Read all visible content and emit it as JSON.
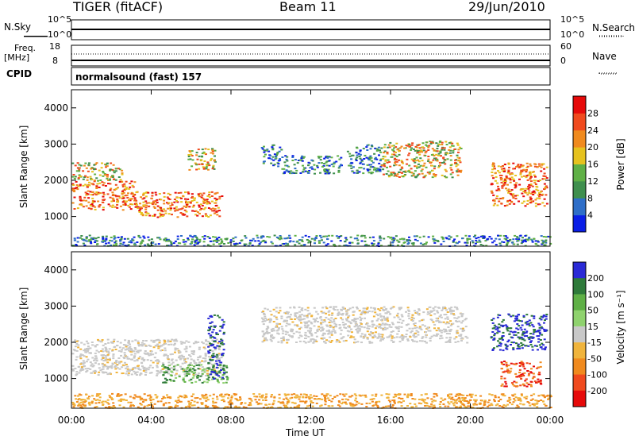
{
  "header": {
    "radar": "TIGER (fitACF)",
    "beam": "Beam 11",
    "date": "29/Jun/2010"
  },
  "noise_panel": {
    "left_label": "N.Sky",
    "left_ticks": [
      "10^5",
      "10^0"
    ],
    "right_label": "N.Search",
    "right_ticks": [
      "10^5",
      "10^0"
    ]
  },
  "freq_panel": {
    "left_label_1": "Freq.",
    "left_label_2": "[MHz]",
    "left_ticks": [
      "18",
      "8"
    ],
    "right_label": "Nave",
    "right_ticks": [
      "60",
      "0"
    ]
  },
  "cpid_panel": {
    "label": "CPID",
    "text": "normalsound (fast) 157"
  },
  "chart_data": [
    {
      "type": "heatmap",
      "name": "power",
      "ylabel": "Slant Range [km]",
      "xlabel": "Time UT",
      "x_ticks": [
        "00:00",
        "04:00",
        "08:00",
        "12:00",
        "16:00",
        "20:00",
        "00:00"
      ],
      "xlim_hours": [
        0,
        24
      ],
      "y_ticks": [
        1000,
        2000,
        3000,
        4000
      ],
      "ylim": [
        180,
        4500
      ],
      "colorbar": {
        "label": "Power [dB]",
        "ticks": [
          4,
          8,
          12,
          16,
          20,
          24,
          28
        ],
        "range": [
          0,
          32
        ],
        "colors": [
          "#0a1ee6",
          "#2e6ec8",
          "#3f8f4e",
          "#5fb046",
          "#e6c21e",
          "#f08a1e",
          "#f04a1e",
          "#e60a0a"
        ]
      },
      "regions": [
        {
          "t": [
            0.0,
            3.2
          ],
          "r": [
            1200,
            2000
          ],
          "level": "high"
        },
        {
          "t": [
            3.2,
            7.5
          ],
          "r": [
            1000,
            1700
          ],
          "level": "high"
        },
        {
          "t": [
            0.0,
            2.5
          ],
          "r": [
            2000,
            2500
          ],
          "level": "mid"
        },
        {
          "t": [
            5.8,
            7.2
          ],
          "r": [
            2300,
            2900
          ],
          "level": "mid"
        },
        {
          "t": [
            9.5,
            10.5
          ],
          "r": [
            2400,
            3000
          ],
          "level": "low"
        },
        {
          "t": [
            10.5,
            13.5
          ],
          "r": [
            2200,
            2700
          ],
          "level": "low"
        },
        {
          "t": [
            13.8,
            15.5
          ],
          "r": [
            2200,
            3000
          ],
          "level": "low"
        },
        {
          "t": [
            15.5,
            19.5
          ],
          "r": [
            2100,
            3100
          ],
          "level": "mid"
        },
        {
          "t": [
            21.0,
            23.8
          ],
          "r": [
            1300,
            2500
          ],
          "level": "high"
        },
        {
          "t": [
            0.0,
            24.0
          ],
          "r": [
            200,
            500
          ],
          "level": "low"
        }
      ]
    },
    {
      "type": "heatmap",
      "name": "velocity",
      "ylabel": "Slant Range [km]",
      "xlabel": "Time UT",
      "x_ticks": [
        "00:00",
        "04:00",
        "08:00",
        "12:00",
        "16:00",
        "20:00",
        "00:00"
      ],
      "xlim_hours": [
        0,
        24
      ],
      "y_ticks": [
        1000,
        2000,
        3000,
        4000
      ],
      "ylim": [
        180,
        4500
      ],
      "colorbar": {
        "label": "Velocity [m s⁻¹]",
        "ticks": [
          200,
          100,
          50,
          15,
          -15,
          -50,
          -100,
          -200
        ],
        "colors": [
          "#2a2ad6",
          "#2e7a3a",
          "#5fb046",
          "#8fd26e",
          "#c8c8c8",
          "#f0b43c",
          "#f08a1e",
          "#f04a1e",
          "#e60a0a"
        ]
      },
      "regions": [
        {
          "t": [
            0.0,
            7.5
          ],
          "r": [
            1100,
            2100
          ],
          "level": "ground"
        },
        {
          "t": [
            4.5,
            7.8
          ],
          "r": [
            900,
            1400
          ],
          "level": "pos-slow"
        },
        {
          "t": [
            6.8,
            7.6
          ],
          "r": [
            1000,
            2800
          ],
          "level": "pos-fast"
        },
        {
          "t": [
            9.5,
            19.8
          ],
          "r": [
            2000,
            3000
          ],
          "level": "ground"
        },
        {
          "t": [
            21.0,
            23.8
          ],
          "r": [
            1800,
            2800
          ],
          "level": "pos-fast"
        },
        {
          "t": [
            21.5,
            23.5
          ],
          "r": [
            800,
            1500
          ],
          "level": "neg-fast"
        },
        {
          "t": [
            0.0,
            24.0
          ],
          "r": [
            200,
            600
          ],
          "level": "neg-slow"
        }
      ]
    }
  ]
}
